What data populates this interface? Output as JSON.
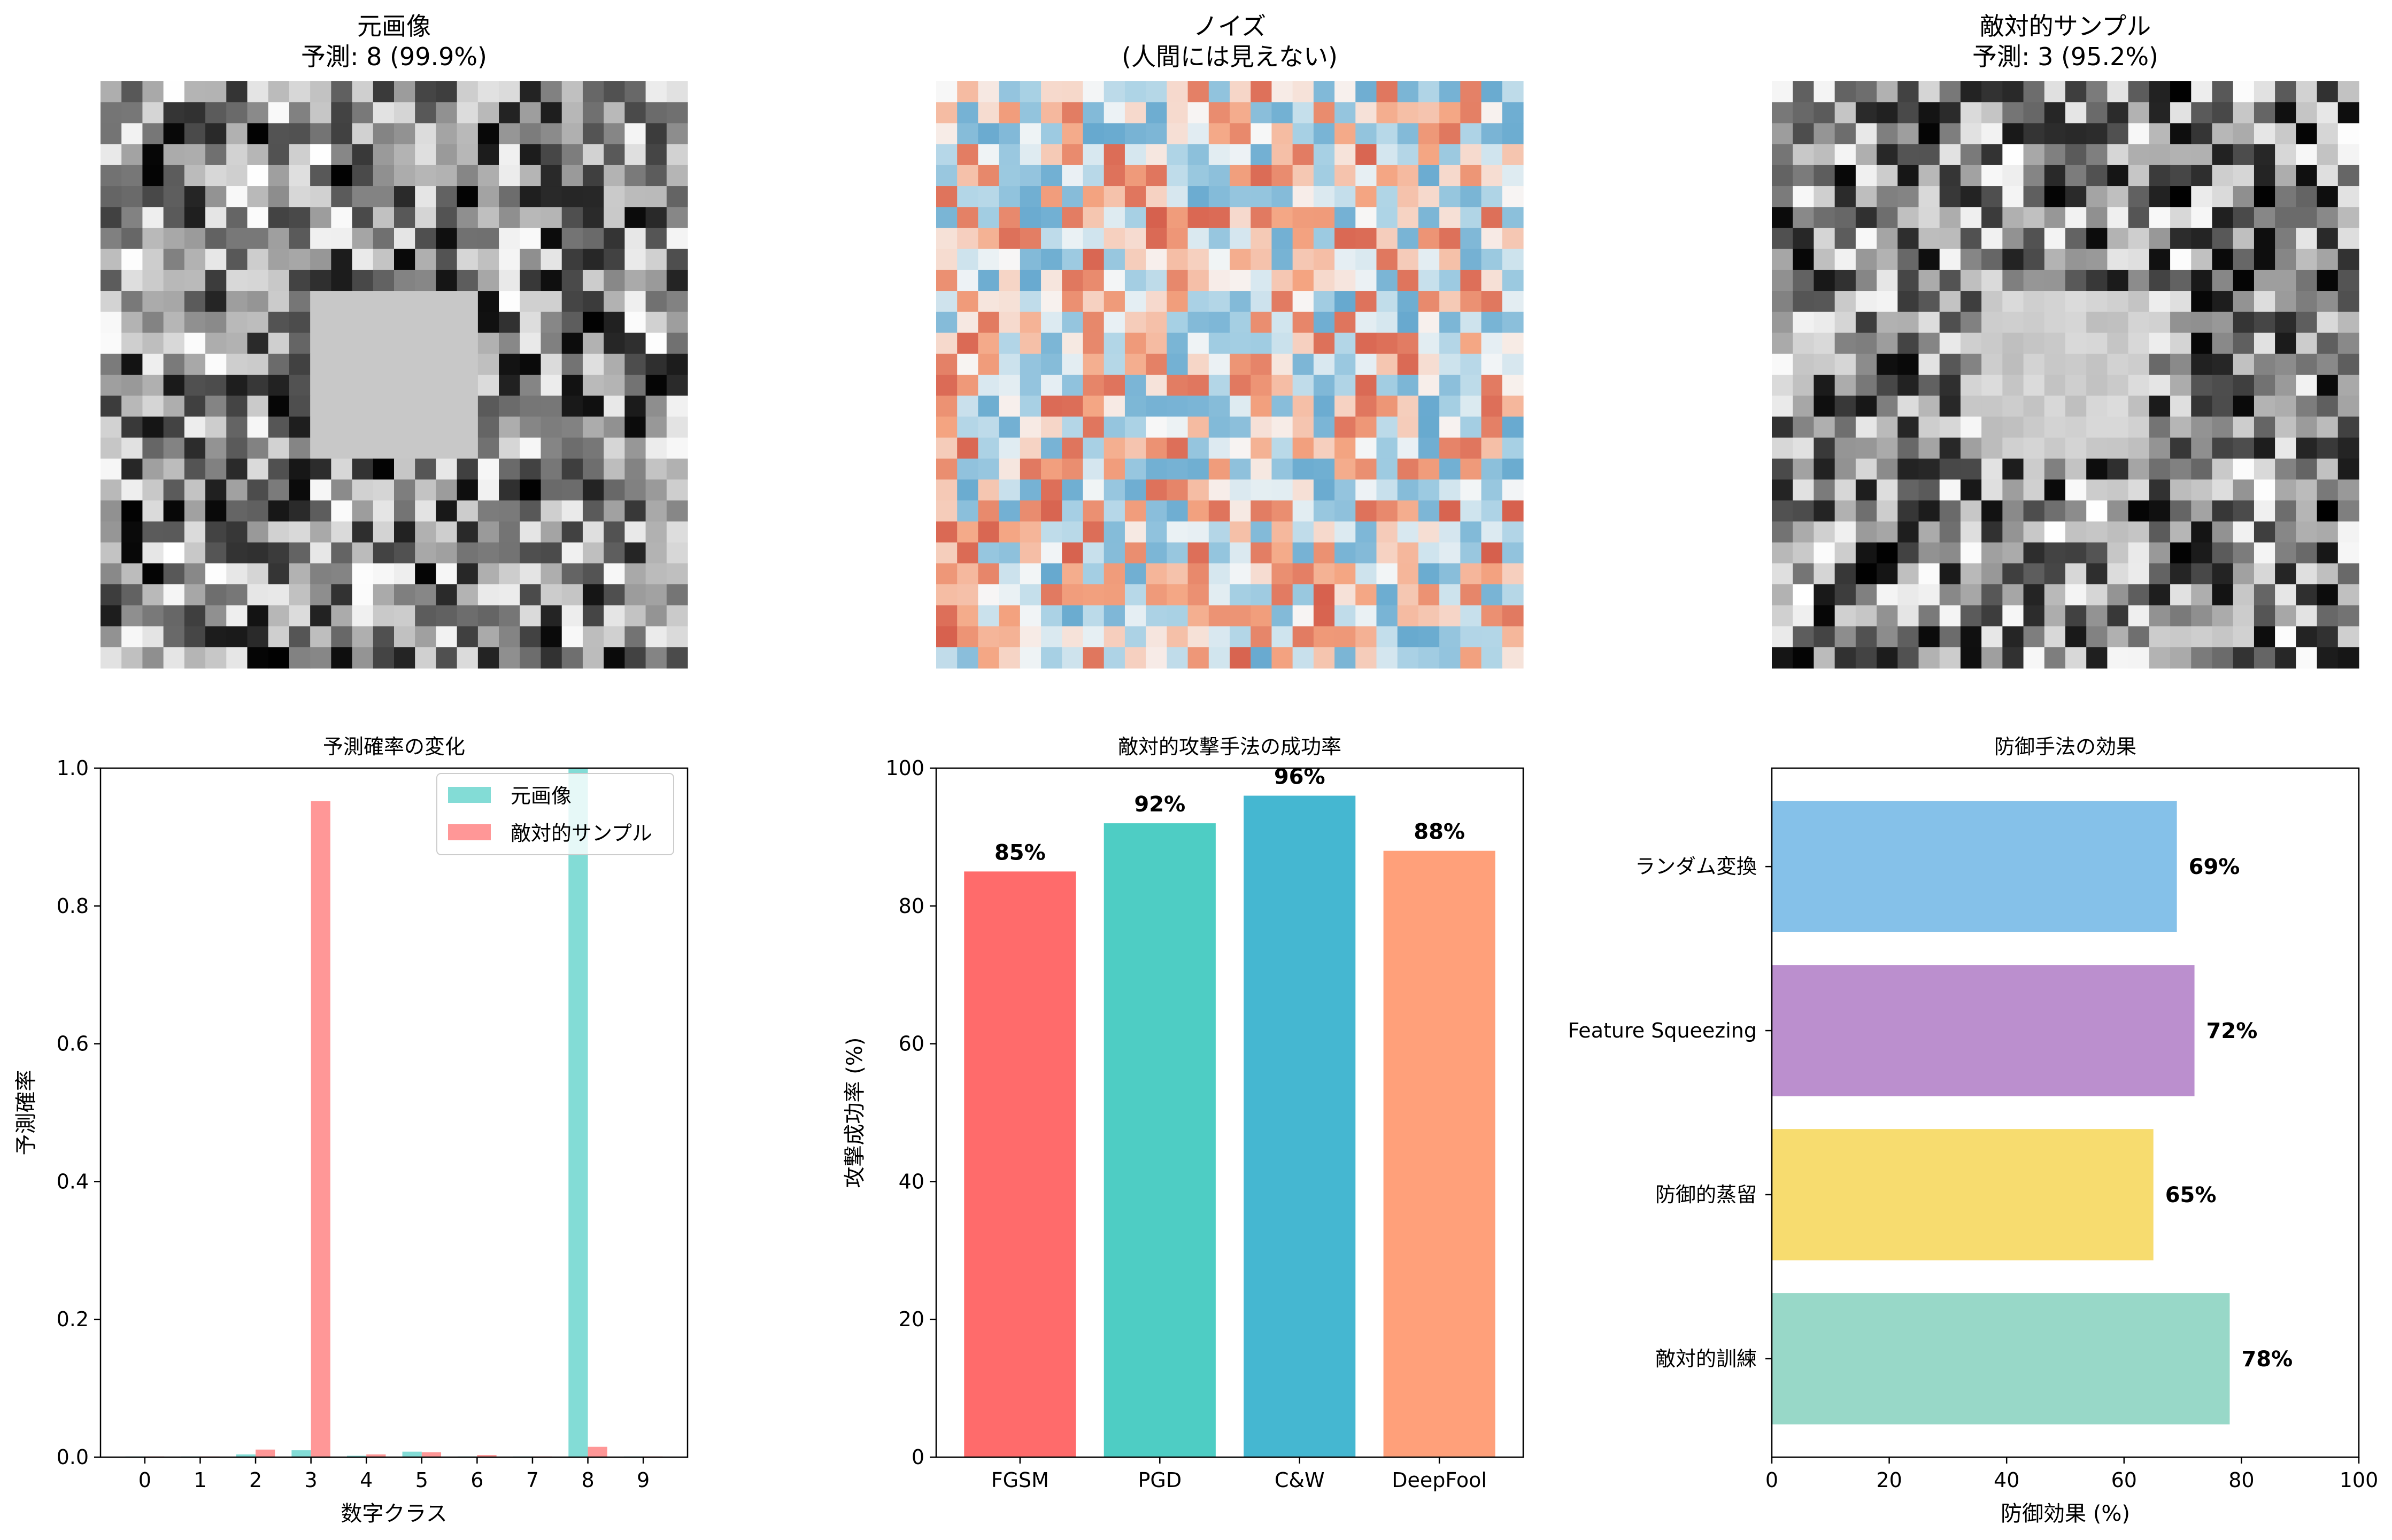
{
  "images": [
    {
      "title": "元画像",
      "subtitle": "予測: 8 (99.9%)",
      "cmap": "gray",
      "patch": "solid"
    },
    {
      "title": "ノイズ",
      "subtitle": "(人間には見えない)",
      "cmap": "rdbu",
      "patch": "none"
    },
    {
      "title": "敵対的サンプル",
      "subtitle": "予測: 3 (95.2%)",
      "cmap": "gray",
      "patch": "noisy"
    }
  ],
  "colors": {
    "original": "#4ecdc4",
    "adversarial": "#ff6b6b",
    "attacks": [
      "#ff6b6b",
      "#4ecdc4",
      "#45b7d1",
      "#ffa07a"
    ],
    "defenses": [
      "#85c1e9",
      "#bb8fce",
      "#f7dc6f",
      "#98d8c8"
    ],
    "gray_patch": "#c8c8c8"
  },
  "chart_data": [
    {
      "type": "bar",
      "title": "予測確率の変化",
      "xlabel": "数字クラス",
      "ylabel": "予測確率",
      "categories": [
        "0",
        "1",
        "2",
        "3",
        "4",
        "5",
        "6",
        "7",
        "8",
        "9"
      ],
      "ylim": [
        0,
        1.0
      ],
      "yticks": [
        "0.0",
        "0.2",
        "0.4",
        "0.6",
        "0.8",
        "1.0"
      ],
      "legend_position": "top-right",
      "series": [
        {
          "name": "元画像",
          "values": [
            0.001,
            0.001,
            0.004,
            0.01,
            0.002,
            0.008,
            0.001,
            0.001,
            0.999,
            0.001
          ]
        },
        {
          "name": "敵対的サンプル",
          "values": [
            0.001,
            0.001,
            0.011,
            0.952,
            0.004,
            0.007,
            0.003,
            0.001,
            0.015,
            0.001
          ]
        }
      ]
    },
    {
      "type": "bar",
      "title": "敵対的攻撃手法の成功率",
      "xlabel": "",
      "ylabel": "攻撃成功率 (%)",
      "categories": [
        "FGSM",
        "PGD",
        "C&W",
        "DeepFool"
      ],
      "values": [
        85,
        92,
        96,
        88
      ],
      "value_labels": [
        "85%",
        "92%",
        "96%",
        "88%"
      ],
      "ylim": [
        0,
        100
      ],
      "yticks": [
        "0",
        "20",
        "40",
        "60",
        "80",
        "100"
      ]
    },
    {
      "type": "bar",
      "orientation": "horizontal",
      "title": "防御手法の効果",
      "xlabel": "防御効果 (%)",
      "ylabel": "",
      "categories": [
        "ランダム変換",
        "Feature Squeezing",
        "防御的蒸留",
        "敵対的訓練"
      ],
      "values": [
        69,
        72,
        65,
        78
      ],
      "value_labels": [
        "69%",
        "72%",
        "65%",
        "78%"
      ],
      "xlim": [
        0,
        100
      ],
      "xticks": [
        "0",
        "20",
        "40",
        "60",
        "80",
        "100"
      ]
    }
  ]
}
